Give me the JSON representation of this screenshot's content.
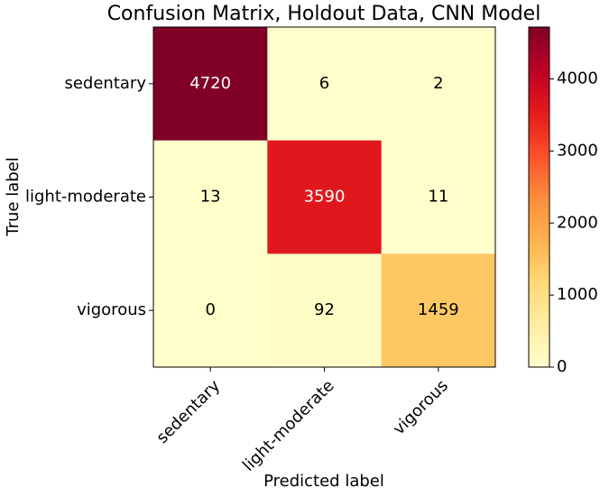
{
  "chart_data": {
    "type": "heatmap",
    "title": "Confusion Matrix, Holdout Data, CNN Model",
    "x_label": "Predicted label",
    "y_label": "True label",
    "x_categories": [
      "sedentary",
      "light-moderate",
      "vigorous"
    ],
    "y_categories": [
      "sedentary",
      "light-moderate",
      "vigorous"
    ],
    "values": [
      [
        4720,
        6,
        2
      ],
      [
        13,
        3590,
        11
      ],
      [
        0,
        92,
        1459
      ]
    ],
    "colormap": "YlOrRd",
    "clim": [
      0,
      4720
    ],
    "cticks": [
      0,
      1000,
      2000,
      3000,
      4000
    ]
  }
}
